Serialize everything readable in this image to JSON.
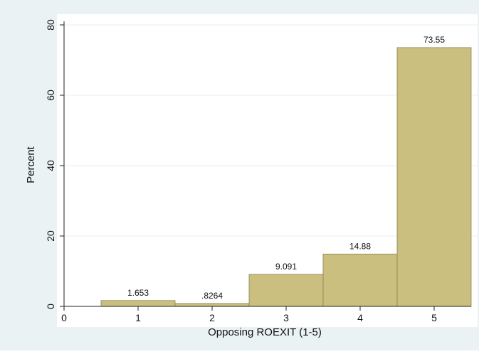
{
  "chart_data": {
    "type": "bar",
    "title": "",
    "xlabel": "Opposing ROEXIT (1-5)",
    "ylabel": "Percent",
    "categories": [
      "1",
      "2",
      "3",
      "4",
      "5"
    ],
    "x": [
      1,
      2,
      3,
      4,
      5
    ],
    "values": [
      1.653,
      0.8264,
      9.091,
      14.88,
      73.55
    ],
    "value_labels": [
      "1.653",
      ".8264",
      "9.091",
      "14.88",
      "73.55"
    ],
    "xlim": [
      0,
      5.5
    ],
    "ylim": [
      0,
      80
    ],
    "xticks": [
      0,
      1,
      2,
      3,
      4,
      5
    ],
    "yticks": [
      0,
      20,
      40,
      60,
      80
    ],
    "grid": true,
    "colors": {
      "bar_fill": "#cbbf80",
      "bar_edge": "#8c8254",
      "plot_bg": "#ffffff",
      "outer_bg": "#eaf2f3",
      "grid": "#e6eff0"
    }
  }
}
